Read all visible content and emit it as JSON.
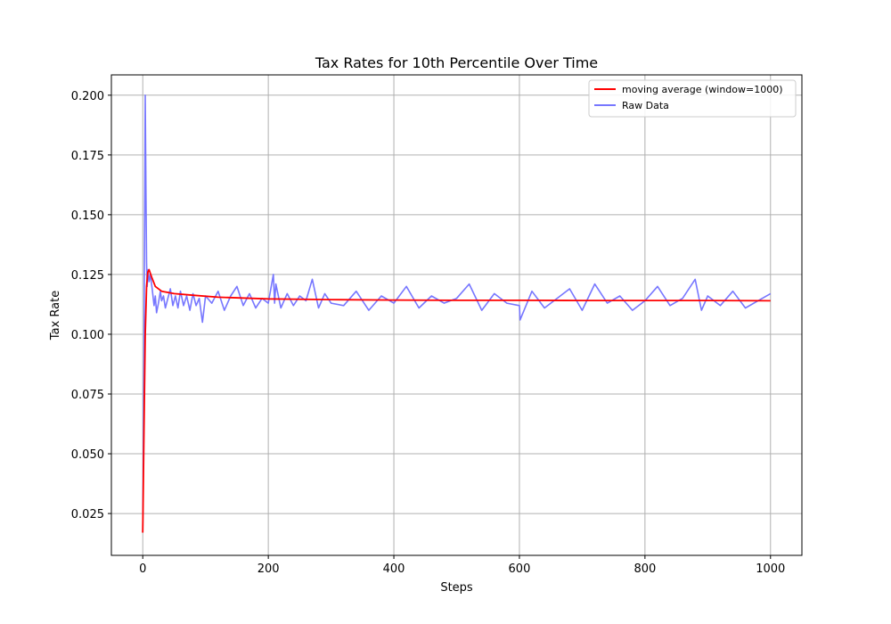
{
  "chart_data": {
    "type": "line",
    "title": "Tax Rates for 10th Percentile Over Time",
    "xlabel": "Steps",
    "ylabel": "Tax Rate",
    "xlim": [
      -50,
      1050
    ],
    "ylim": [
      0.0075,
      0.2085
    ],
    "xticks": [
      0,
      200,
      400,
      600,
      800,
      1000
    ],
    "yticks": [
      0.025,
      0.05,
      0.075,
      0.1,
      0.125,
      0.15,
      0.175,
      0.2
    ],
    "ytick_labels": [
      "0.025",
      "0.050",
      "0.075",
      "0.100",
      "0.125",
      "0.150",
      "0.175",
      "0.200"
    ],
    "grid": true,
    "legend_position": "top-right",
    "series": [
      {
        "name": "moving average (window=1000)",
        "color": "#ff0000",
        "style": "solid",
        "x": [
          0,
          2,
          4,
          6,
          8,
          10,
          14,
          20,
          30,
          50,
          80,
          120,
          200,
          300,
          400,
          500,
          600,
          700,
          800,
          900,
          1000
        ],
        "y": [
          0.017,
          0.06,
          0.1,
          0.12,
          0.126,
          0.127,
          0.124,
          0.12,
          0.118,
          0.117,
          0.1163,
          0.1155,
          0.1148,
          0.1145,
          0.1143,
          0.1142,
          0.1142,
          0.1141,
          0.1141,
          0.1141,
          0.114
        ]
      },
      {
        "name": "Raw Data",
        "color": "#7777ff",
        "style": "solid",
        "x": [
          0,
          2,
          4,
          5,
          6,
          7,
          8,
          10,
          12,
          15,
          18,
          20,
          22,
          25,
          28,
          30,
          33,
          36,
          40,
          44,
          48,
          52,
          56,
          60,
          65,
          70,
          75,
          80,
          85,
          90,
          95,
          100,
          110,
          120,
          130,
          140,
          150,
          160,
          170,
          180,
          190,
          200,
          208,
          210,
          212,
          220,
          230,
          240,
          250,
          260,
          270,
          280,
          290,
          300,
          320,
          340,
          360,
          380,
          400,
          420,
          440,
          460,
          480,
          500,
          520,
          540,
          560,
          580,
          600,
          601,
          620,
          640,
          660,
          680,
          700,
          720,
          740,
          760,
          780,
          800,
          820,
          840,
          860,
          880,
          890,
          900,
          920,
          940,
          960,
          980,
          1000
        ],
        "y": [
          0.017,
          0.09,
          0.2,
          0.16,
          0.13,
          0.12,
          0.127,
          0.122,
          0.125,
          0.119,
          0.112,
          0.116,
          0.109,
          0.113,
          0.118,
          0.114,
          0.116,
          0.111,
          0.115,
          0.119,
          0.112,
          0.116,
          0.111,
          0.118,
          0.112,
          0.116,
          0.11,
          0.117,
          0.112,
          0.115,
          0.105,
          0.116,
          0.113,
          0.118,
          0.11,
          0.116,
          0.12,
          0.112,
          0.117,
          0.111,
          0.115,
          0.113,
          0.125,
          0.113,
          0.121,
          0.111,
          0.117,
          0.112,
          0.116,
          0.114,
          0.123,
          0.111,
          0.117,
          0.113,
          0.112,
          0.118,
          0.11,
          0.116,
          0.113,
          0.12,
          0.111,
          0.116,
          0.113,
          0.115,
          0.121,
          0.11,
          0.117,
          0.113,
          0.112,
          0.106,
          0.118,
          0.111,
          0.115,
          0.119,
          0.11,
          0.121,
          0.113,
          0.116,
          0.11,
          0.114,
          0.12,
          0.112,
          0.115,
          0.123,
          0.11,
          0.116,
          0.112,
          0.118,
          0.111,
          0.114,
          0.117
        ]
      }
    ]
  }
}
